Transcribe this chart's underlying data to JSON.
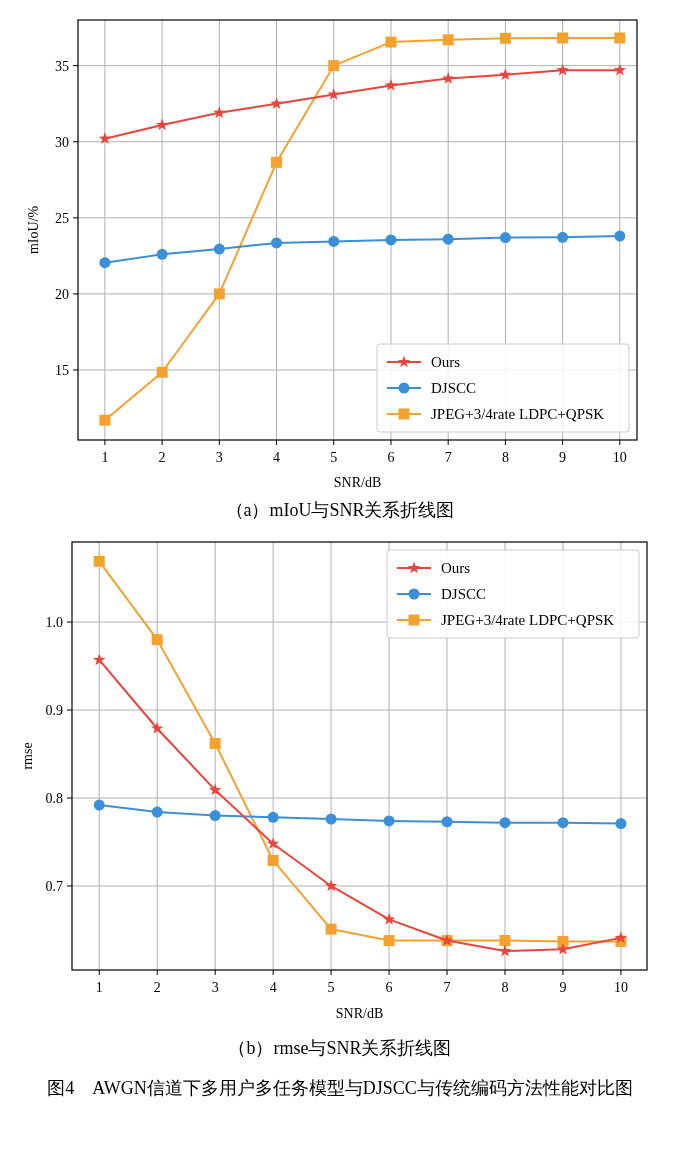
{
  "chart_data": [
    {
      "type": "line",
      "xlabel": "SNR/dB",
      "ylabel": "mIoU/%",
      "x": [
        1,
        2,
        3,
        4,
        5,
        6,
        7,
        8,
        9,
        10
      ],
      "xlim": [
        0.53,
        10.3
      ],
      "xticks": [
        1,
        2,
        3,
        4,
        5,
        6,
        7,
        8,
        9,
        10
      ],
      "ylim": [
        10.4,
        38.0
      ],
      "yticks": [
        15,
        20,
        25,
        30,
        35
      ],
      "grid": true,
      "legend": "bottom right",
      "line_style": "solid",
      "series": [
        {
          "name": "Ours",
          "color": "#e8453c",
          "marker": "star",
          "values": [
            30.2,
            31.1,
            31.9,
            32.5,
            33.1,
            33.7,
            34.15,
            34.4,
            34.7,
            34.7
          ]
        },
        {
          "name": "DJSCC",
          "color": "#3a8fd6",
          "marker": "circle",
          "values": [
            22.05,
            22.6,
            22.95,
            23.35,
            23.45,
            23.55,
            23.6,
            23.7,
            23.72,
            23.8
          ]
        },
        {
          "name": "JPEG+3/4rate LDPC+QPSK",
          "color": "#f4a130",
          "marker": "square",
          "values": [
            11.7,
            14.85,
            20.0,
            28.65,
            35.0,
            36.55,
            36.7,
            36.8,
            36.82,
            36.82
          ]
        }
      ],
      "annotations": [
        "（a）mIoU与SNR关系折线图"
      ]
    },
    {
      "type": "line",
      "xlabel": "SNR/dB",
      "ylabel": "rmse",
      "x": [
        1,
        2,
        3,
        4,
        5,
        6,
        7,
        8,
        9,
        10
      ],
      "xlim": [
        0.53,
        10.45
      ],
      "xticks": [
        1,
        2,
        3,
        4,
        5,
        6,
        7,
        8,
        9,
        10
      ],
      "ylim": [
        0.6045,
        1.091
      ],
      "yticks": [
        {
          "value": 0.7,
          "label": "0.7"
        },
        {
          "value": 0.8,
          "label": "0.8"
        },
        {
          "value": 0.9,
          "label": "0.9"
        },
        {
          "value": 1.0,
          "label": "1.0"
        }
      ],
      "grid": true,
      "legend": "top right",
      "line_style": "solid",
      "series": [
        {
          "name": "Ours",
          "color": "#e8453c",
          "marker": "star",
          "values": [
            0.957,
            0.879,
            0.809,
            0.748,
            0.7,
            0.662,
            0.638,
            0.626,
            0.628,
            0.641
          ]
        },
        {
          "name": "DJSCC",
          "color": "#3a8fd6",
          "marker": "circle",
          "values": [
            0.792,
            0.784,
            0.78,
            0.778,
            0.776,
            0.774,
            0.773,
            0.772,
            0.772,
            0.771
          ]
        },
        {
          "name": "JPEG+3/4rate LDPC+QPSK",
          "color": "#f4a130",
          "marker": "square",
          "values": [
            1.069,
            0.98,
            0.862,
            0.729,
            0.651,
            0.638,
            0.638,
            0.638,
            0.637,
            0.637
          ]
        }
      ],
      "annotations": [
        "（b）rmse与SNR关系折线图",
        "图4　AWGN信道下多用户多任务模型与DJSCC与传统编码方法性能对比图"
      ]
    }
  ]
}
